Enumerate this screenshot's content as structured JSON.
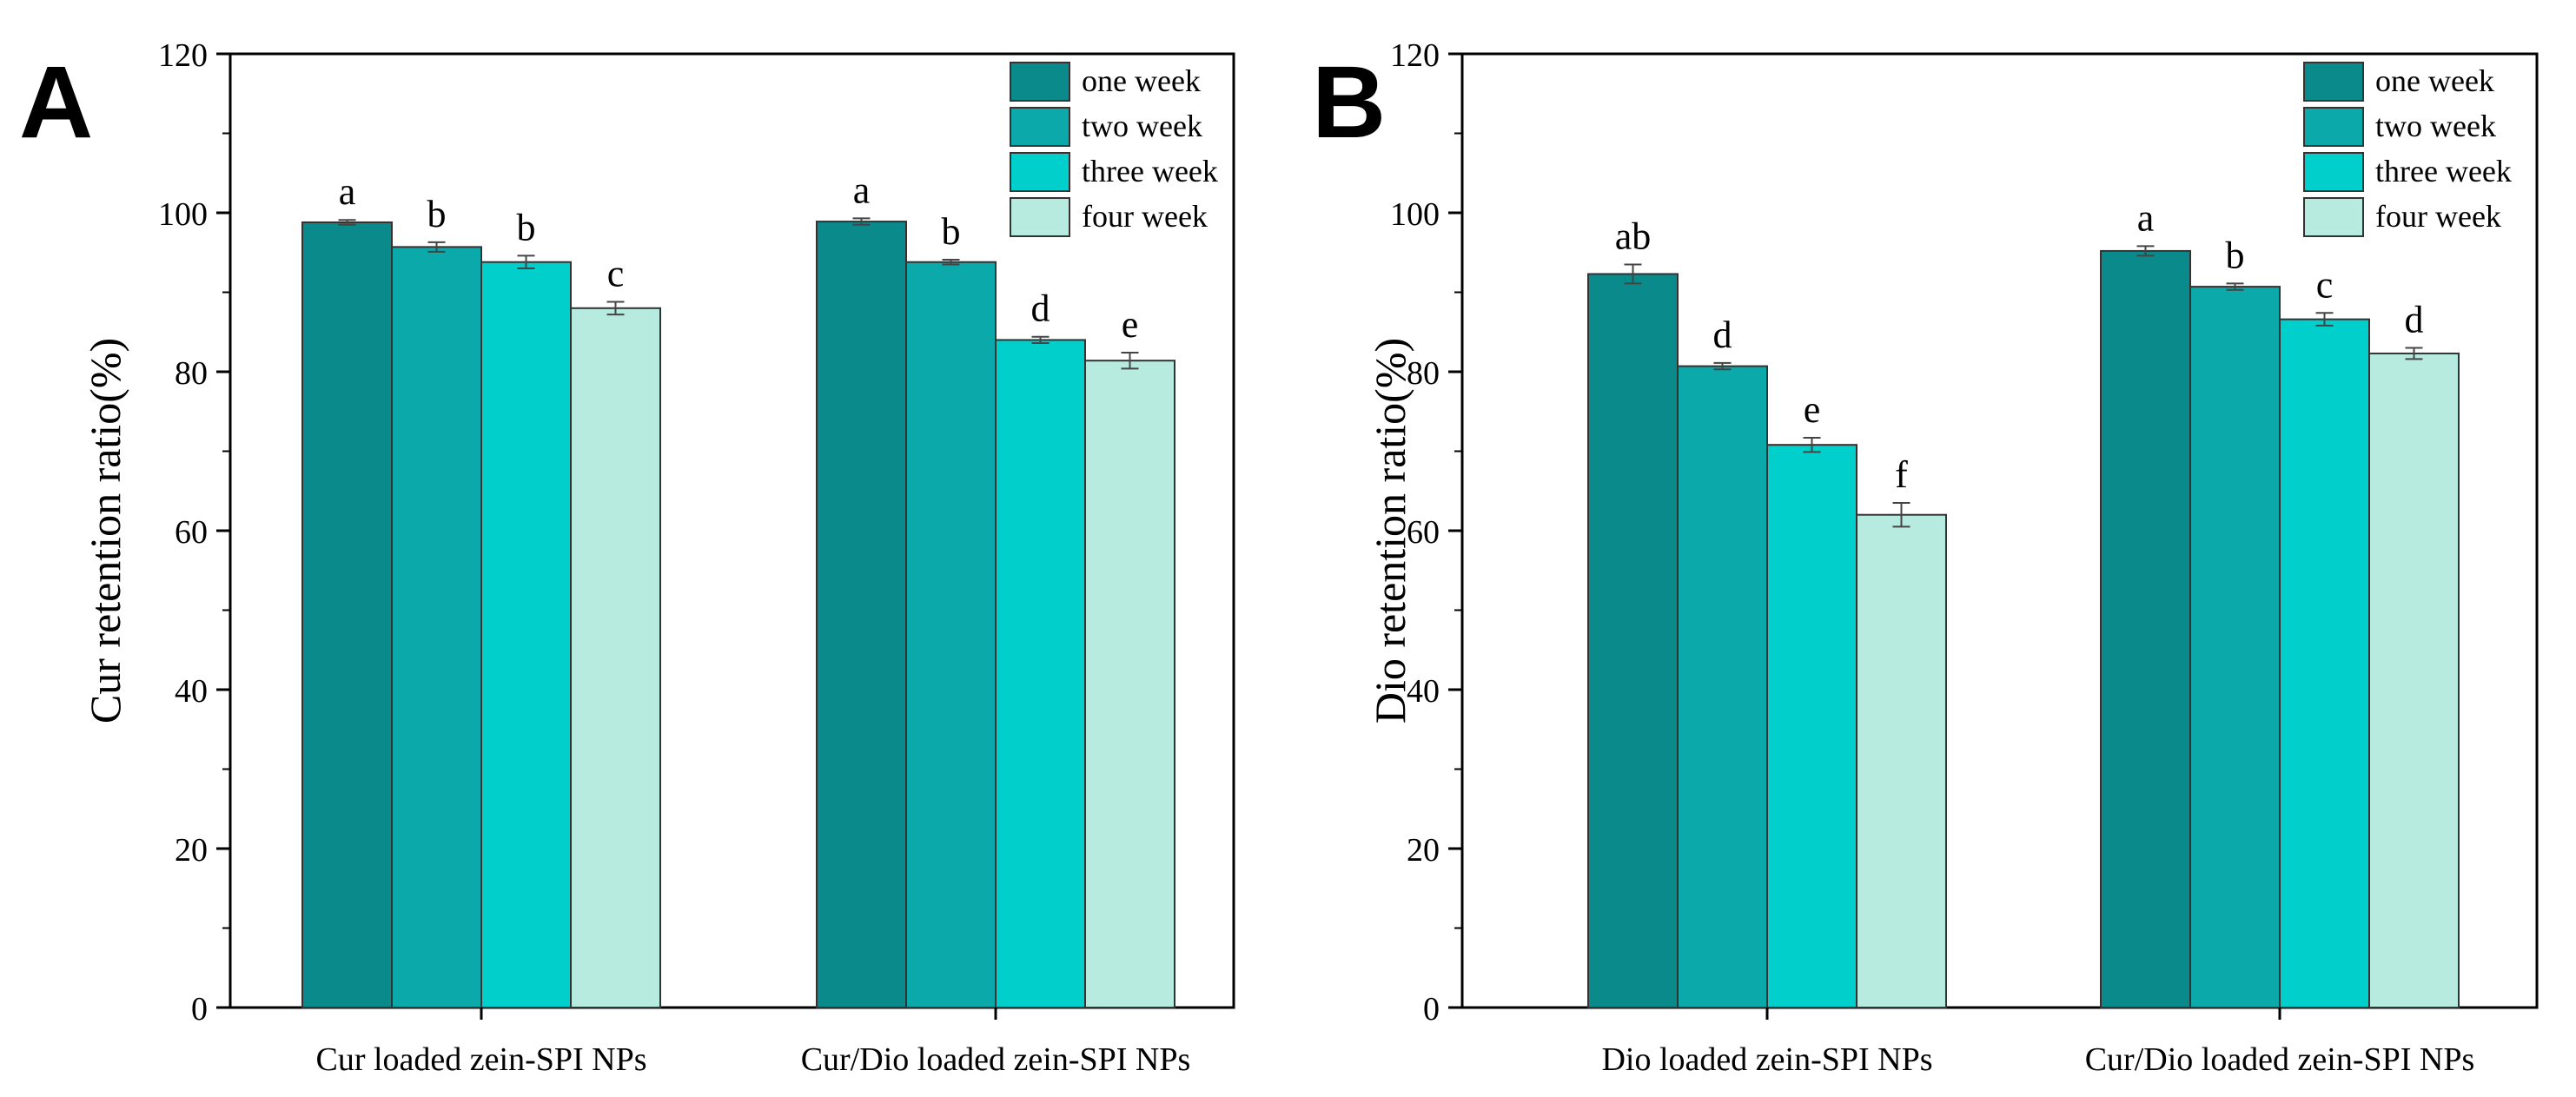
{
  "chart_data": [
    {
      "panel": "A",
      "type": "bar",
      "ylabel": "Cur retention ratio(%)",
      "xlabel": "",
      "ylim": [
        0,
        120
      ],
      "yticks": [
        0,
        20,
        40,
        60,
        80,
        100,
        120
      ],
      "categories": [
        "Cur loaded zein-SPI NPs",
        "Cur/Dio loaded zein-SPI NPs"
      ],
      "series": [
        {
          "name": "one week",
          "color": "#0a8a8a",
          "values": [
            98.8,
            98.9
          ],
          "errors": [
            0.3,
            0.4
          ],
          "letters": [
            "a",
            "a"
          ]
        },
        {
          "name": "two week",
          "color": "#0ba9a9",
          "values": [
            95.7,
            93.8
          ],
          "errors": [
            0.6,
            0.3
          ],
          "letters": [
            "b",
            "b"
          ]
        },
        {
          "name": "three week",
          "color": "#00cfcc",
          "values": [
            93.8,
            84.0
          ],
          "errors": [
            0.8,
            0.4
          ],
          "letters": [
            "b",
            "d"
          ]
        },
        {
          "name": "four week",
          "color": "#b7ebe0",
          "values": [
            88.0,
            81.4
          ],
          "errors": [
            0.8,
            1.0
          ],
          "letters": [
            "c",
            "e"
          ]
        }
      ],
      "legend": "top-right"
    },
    {
      "panel": "B",
      "type": "bar",
      "ylabel": "Dio retention ratio(%)",
      "xlabel": "",
      "ylim": [
        0,
        120
      ],
      "yticks": [
        0,
        20,
        40,
        60,
        80,
        100,
        120
      ],
      "categories": [
        "Dio loaded zein-SPI NPs",
        "Cur/Dio loaded zein-SPI NPs"
      ],
      "series": [
        {
          "name": "one week",
          "color": "#0a8a8a",
          "values": [
            92.3,
            95.2
          ],
          "errors": [
            1.2,
            0.6
          ],
          "letters": [
            "ab",
            "a"
          ]
        },
        {
          "name": "two week",
          "color": "#0ba9a9",
          "values": [
            80.7,
            90.7
          ],
          "errors": [
            0.4,
            0.4
          ],
          "letters": [
            "d",
            "b"
          ]
        },
        {
          "name": "three week",
          "color": "#00cfcc",
          "values": [
            70.8,
            86.6
          ],
          "errors": [
            0.9,
            0.8
          ],
          "letters": [
            "e",
            "c"
          ]
        },
        {
          "name": "four week",
          "color": "#b7ebe0",
          "values": [
            62.0,
            82.3
          ],
          "errors": [
            1.5,
            0.7
          ],
          "letters": [
            "f",
            "d"
          ]
        }
      ],
      "legend": "top-right"
    }
  ]
}
